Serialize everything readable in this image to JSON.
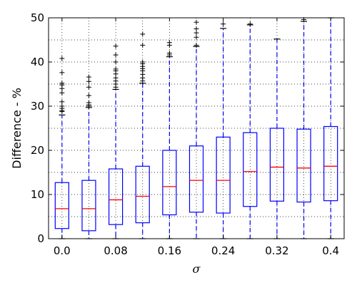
{
  "chart_data": {
    "type": "box",
    "xlabel": "σ",
    "ylabel": "Difference - %",
    "ylim": [
      0,
      50
    ],
    "xlim": [
      -0.02,
      0.42
    ],
    "x_ticks": [
      0.0,
      0.08,
      0.16,
      0.24,
      0.32,
      0.4
    ],
    "x_tick_labels": [
      "0.0",
      "0.08",
      "0.16",
      "0.24",
      "0.32",
      "0.4"
    ],
    "y_ticks": [
      0,
      10,
      20,
      30,
      40,
      50
    ],
    "y_tick_labels": [
      "0",
      "10",
      "20",
      "30",
      "40",
      "50"
    ],
    "grid": true,
    "colors": {
      "box": "#0000ff",
      "median": "#ff0000",
      "outlier": "#000000",
      "grid": "#000000"
    },
    "boxes": [
      {
        "x": 0.0,
        "whislo": 0.0,
        "q1": 2.3,
        "med": 6.8,
        "q3": 12.7,
        "whishi": 28.0,
        "fliers": [
          28.8,
          29.0,
          29.5,
          30.0,
          31.0,
          33.0,
          34.0,
          34.8,
          35.2,
          37.6,
          40.8
        ]
      },
      {
        "x": 0.04,
        "whislo": 0.0,
        "q1": 1.8,
        "med": 6.8,
        "q3": 13.2,
        "whishi": 29.7,
        "fliers": [
          30.0,
          30.3,
          30.8,
          32.4,
          34.3,
          35.6,
          36.6
        ]
      },
      {
        "x": 0.08,
        "whislo": 0.0,
        "q1": 3.2,
        "med": 8.8,
        "q3": 15.8,
        "whishi": 33.8,
        "fliers": [
          34.3,
          35.0,
          35.7,
          36.4,
          37.3,
          38.0,
          38.4,
          40.0,
          41.6,
          43.6
        ]
      },
      {
        "x": 0.12,
        "whislo": 0.0,
        "q1": 3.6,
        "med": 9.6,
        "q3": 16.4,
        "whishi": 35.2,
        "fliers": [
          35.7,
          36.4,
          37.2,
          38.0,
          38.5,
          39.0,
          39.6,
          40.0,
          43.8,
          46.3
        ]
      },
      {
        "x": 0.16,
        "whislo": 0.0,
        "q1": 5.4,
        "med": 11.8,
        "q3": 20.0,
        "whishi": 41.2,
        "fliers": [
          41.6,
          42.0,
          43.8,
          44.4
        ]
      },
      {
        "x": 0.2,
        "whislo": 0.0,
        "q1": 6.0,
        "med": 13.2,
        "q3": 21.0,
        "whishi": 43.5,
        "fliers": [
          43.8,
          45.6,
          46.6,
          47.5,
          49.0
        ]
      },
      {
        "x": 0.24,
        "whislo": 0.0,
        "q1": 5.8,
        "med": 13.2,
        "q3": 23.0,
        "whishi": 47.6,
        "fliers": [
          48.6
        ]
      },
      {
        "x": 0.28,
        "whislo": 0.0,
        "q1": 7.3,
        "med": 15.2,
        "q3": 24.0,
        "whishi": 48.4,
        "fliers": [
          48.6
        ]
      },
      {
        "x": 0.32,
        "whislo": 0.0,
        "q1": 8.5,
        "med": 16.2,
        "q3": 25.0,
        "whishi": 45.2,
        "fliers": []
      },
      {
        "x": 0.36,
        "whislo": 0.0,
        "q1": 8.3,
        "med": 16.0,
        "q3": 24.8,
        "whishi": 49.2,
        "fliers": [
          49.6
        ]
      },
      {
        "x": 0.4,
        "whislo": 0.0,
        "q1": 8.6,
        "med": 16.4,
        "q3": 25.4,
        "whishi": 50.0,
        "fliers": []
      }
    ]
  }
}
